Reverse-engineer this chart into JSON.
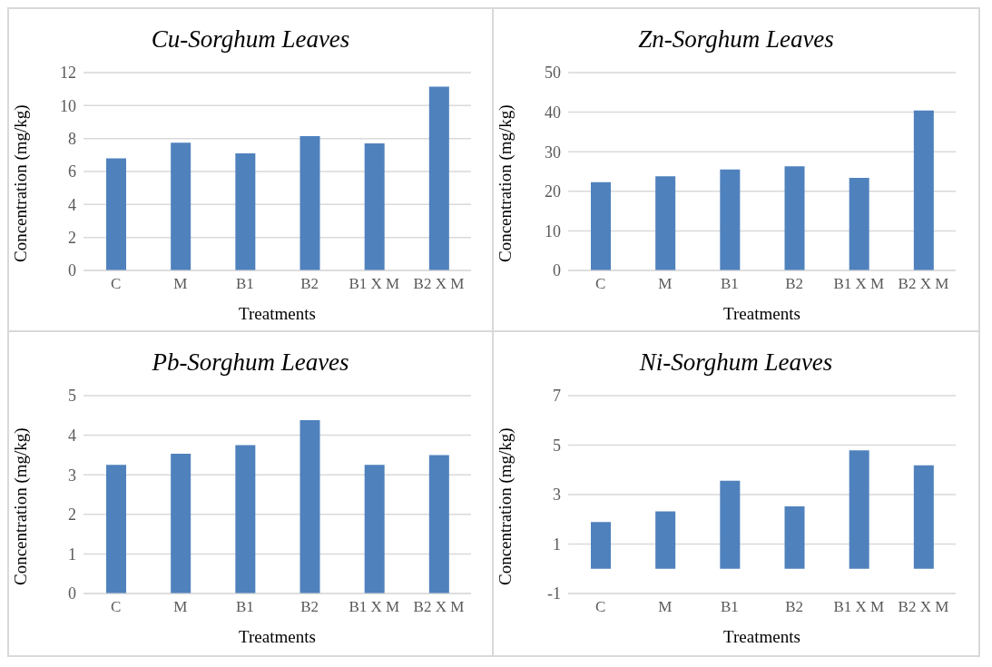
{
  "chart_data": [
    {
      "type": "bar",
      "title": "Cu-Sorghum Leaves",
      "xlabel": "Treatments",
      "ylabel": "Concentration (mg/kg)",
      "categories": [
        "C",
        "M",
        "B1",
        "B2",
        "B1 X M",
        "B2 X M"
      ],
      "values": [
        6.8,
        7.75,
        7.1,
        8.15,
        7.7,
        11.15
      ],
      "color": "#4f81bd",
      "ylim": [
        0,
        12
      ],
      "yticks": [
        0,
        2,
        4,
        6,
        8,
        10,
        12
      ],
      "grid": "y",
      "legend": false
    },
    {
      "type": "bar",
      "title": "Zn-Sorghum Leaves",
      "xlabel": "Treatments",
      "ylabel": "Concentration (mg/kg)",
      "categories": [
        "C",
        "M",
        "B1",
        "B2",
        "B1 X M",
        "B2 X M"
      ],
      "values": [
        22.3,
        23.8,
        25.5,
        26.3,
        23.4,
        40.4
      ],
      "color": "#4f81bd",
      "ylim": [
        0,
        50
      ],
      "yticks": [
        0,
        10,
        20,
        30,
        40,
        50
      ],
      "grid": "y",
      "legend": false
    },
    {
      "type": "bar",
      "title": "Pb-Sorghum Leaves",
      "xlabel": "Treatments",
      "ylabel": "Concentration (mg/kg)",
      "categories": [
        "C",
        "M",
        "B1",
        "B2",
        "B1 X M",
        "B2 X M"
      ],
      "values": [
        3.25,
        3.53,
        3.75,
        4.38,
        3.25,
        3.5
      ],
      "color": "#4f81bd",
      "ylim": [
        0,
        5
      ],
      "yticks": [
        0,
        1,
        2,
        3,
        4,
        5
      ],
      "grid": "y",
      "legend": false
    },
    {
      "type": "bar",
      "title": "Ni-Sorghum Leaves",
      "xlabel": "Treatments",
      "ylabel": "Concentration (mg/kg)",
      "categories": [
        "C",
        "M",
        "B1",
        "B2",
        "B1 X M",
        "B2 X M"
      ],
      "values": [
        1.89,
        2.32,
        3.56,
        2.52,
        4.79,
        4.18
      ],
      "color": "#4f81bd",
      "ylim": [
        -1,
        7
      ],
      "yticks": [
        -1,
        1,
        3,
        5,
        7
      ],
      "grid": "y",
      "legend": false
    }
  ]
}
